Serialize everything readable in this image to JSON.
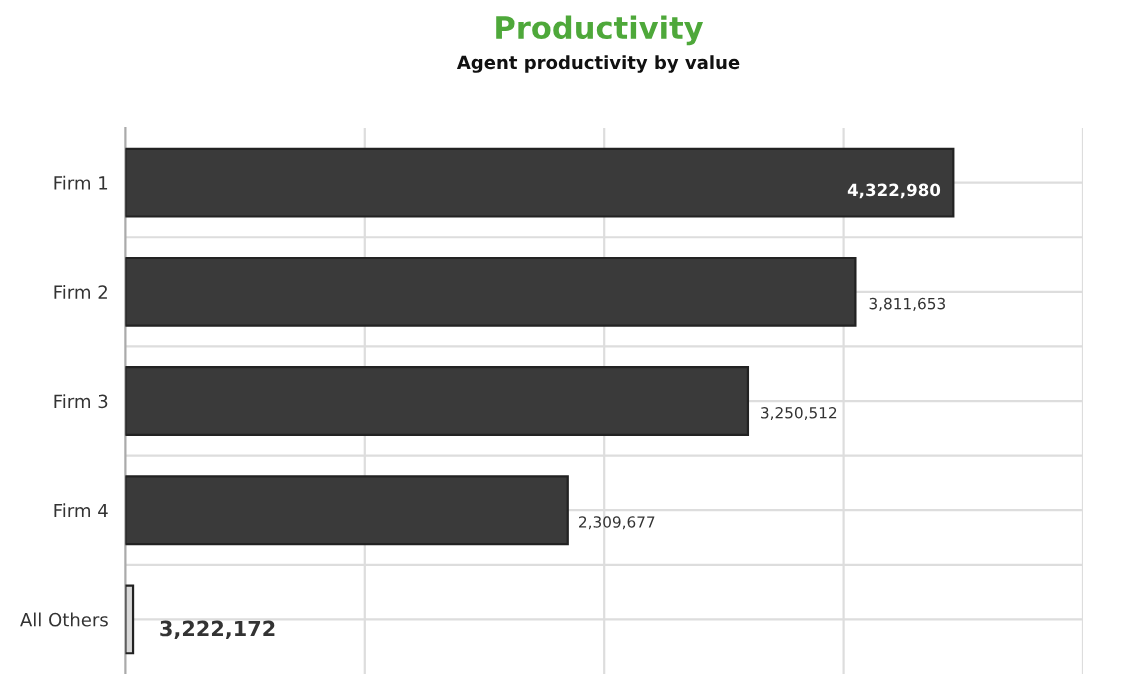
{
  "chart_data": {
    "type": "bar",
    "orientation": "horizontal",
    "title": "Productivity",
    "subtitle": "Agent productivity by value",
    "categories": [
      "Firm 1",
      "Firm 2",
      "Firm 3",
      "Firm 4",
      "All Others"
    ],
    "values": [
      4322980,
      3811653,
      3250512,
      2309677,
      40000
    ],
    "colors": [
      "#3a3a3a",
      "#3a3a3a",
      "#3a3a3a",
      "#3a3a3a",
      "#d9d9d9"
    ],
    "value_labels": [
      "4,322,980",
      "3,811,653",
      "3,250,512",
      "2,309,677",
      null
    ],
    "annotations": [
      "3,222,172"
    ],
    "xlim": [
      0,
      5000000
    ],
    "xticks": [
      {
        "value": 1250000,
        "label": null
      },
      {
        "value": 2500000,
        "label": null
      },
      {
        "value": 3750000,
        "label": null
      },
      {
        "value": 5000000,
        "label": null
      }
    ],
    "grid": true
  }
}
